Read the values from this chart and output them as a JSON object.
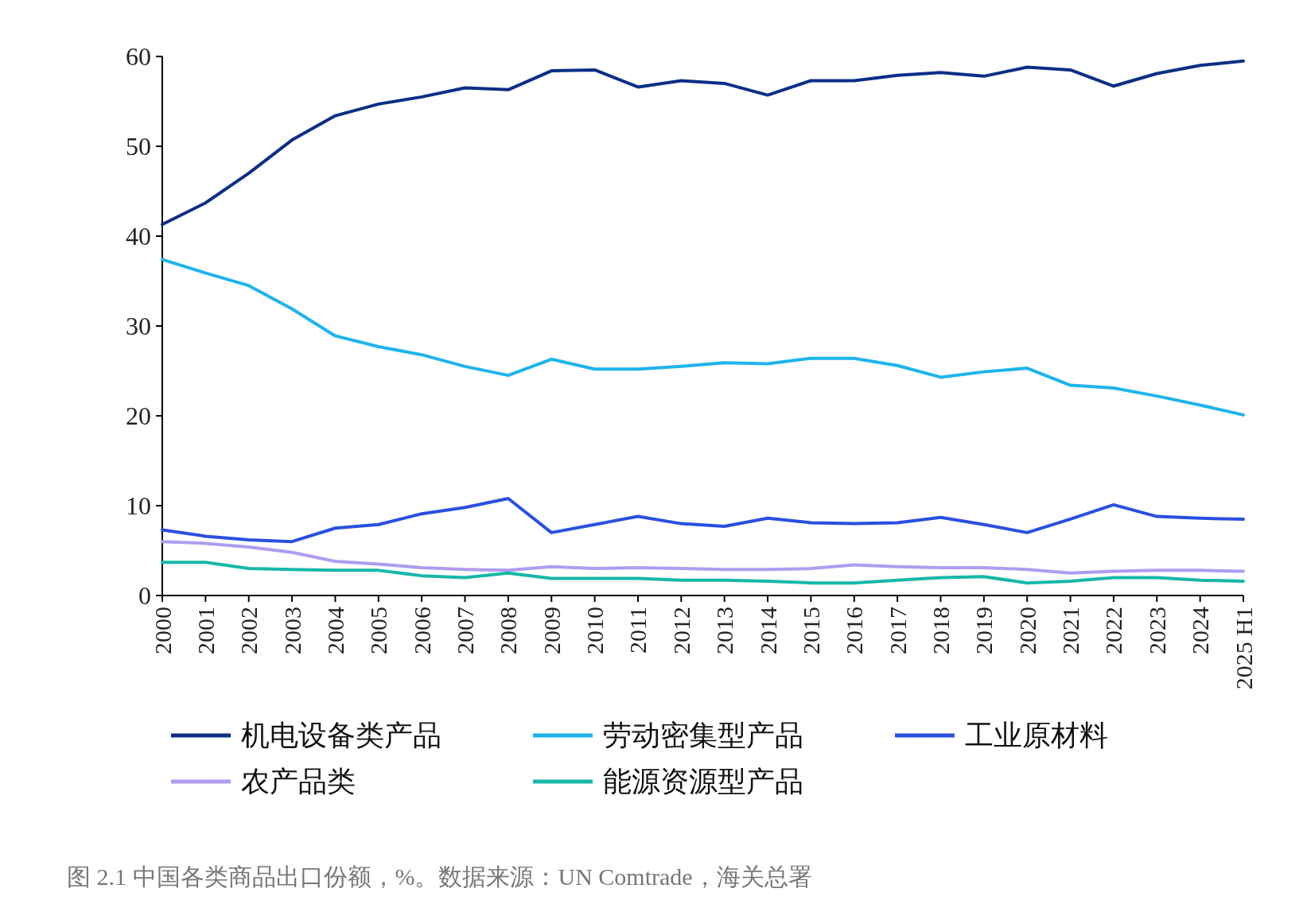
{
  "chart_data": {
    "type": "line",
    "categories": [
      "2000",
      "2001",
      "2002",
      "2003",
      "2004",
      "2005",
      "2006",
      "2007",
      "2008",
      "2009",
      "2010",
      "2011",
      "2012",
      "2013",
      "2014",
      "2015",
      "2016",
      "2017",
      "2018",
      "2019",
      "2020",
      "2021",
      "2022",
      "2023",
      "2024",
      "2025 H1"
    ],
    "series": [
      {
        "name": "机电设备类产品",
        "color": "#0b2f86",
        "values": [
          41.3,
          43.7,
          47,
          50.7,
          53.4,
          54.7,
          55.5,
          56.5,
          56.3,
          58.4,
          58.5,
          56.6,
          57.3,
          57.0,
          55.7,
          57.3,
          57.3,
          57.9,
          58.2,
          57.8,
          58.8,
          58.5,
          56.7,
          58.1,
          59.0,
          59.5
        ]
      },
      {
        "name": "劳动密集型产品",
        "color": "#1eb4ec",
        "values": [
          37.4,
          35.9,
          34.5,
          31.9,
          28.9,
          27.7,
          26.8,
          25.5,
          24.5,
          26.3,
          25.2,
          25.2,
          25.5,
          25.9,
          25.8,
          26.4,
          26.4,
          25.6,
          24.3,
          24.9,
          25.3,
          23.4,
          23.1,
          22.2,
          21.2,
          20.1
        ]
      },
      {
        "name": "工业原材料",
        "color": "#2a4fe0",
        "values": [
          7.3,
          6.6,
          6.2,
          6.0,
          7.5,
          7.9,
          9.1,
          9.8,
          10.8,
          7.0,
          7.9,
          8.8,
          8.0,
          7.7,
          8.6,
          8.1,
          8.0,
          8.1,
          8.7,
          7.9,
          7.0,
          8.5,
          10.1,
          8.8,
          8.6,
          8.5
        ]
      },
      {
        "name": "农产品类",
        "color": "#b09cf0",
        "values": [
          6.0,
          5.8,
          5.4,
          4.8,
          3.8,
          3.5,
          3.1,
          2.9,
          2.8,
          3.2,
          3.0,
          3.1,
          3.0,
          2.9,
          2.9,
          3.0,
          3.4,
          3.2,
          3.1,
          3.1,
          2.9,
          2.5,
          2.7,
          2.8,
          2.8,
          2.7
        ]
      },
      {
        "name": "能源资源型产品",
        "color": "#16b8a8",
        "values": [
          3.7,
          3.7,
          3.0,
          2.9,
          2.8,
          2.8,
          2.2,
          2.0,
          2.5,
          1.9,
          1.9,
          1.9,
          1.7,
          1.7,
          1.6,
          1.4,
          1.4,
          1.7,
          2.0,
          2.1,
          1.4,
          1.6,
          2.0,
          2.0,
          1.7,
          1.6
        ]
      }
    ],
    "ylim": [
      0,
      60
    ],
    "yticks": [
      0,
      10,
      20,
      30,
      40,
      50,
      60
    ],
    "legend": "bottom",
    "annotations": [
      "图 2.1 中国各类商品出口份额，%。数据来源：UN Comtrade，海关总署"
    ]
  }
}
